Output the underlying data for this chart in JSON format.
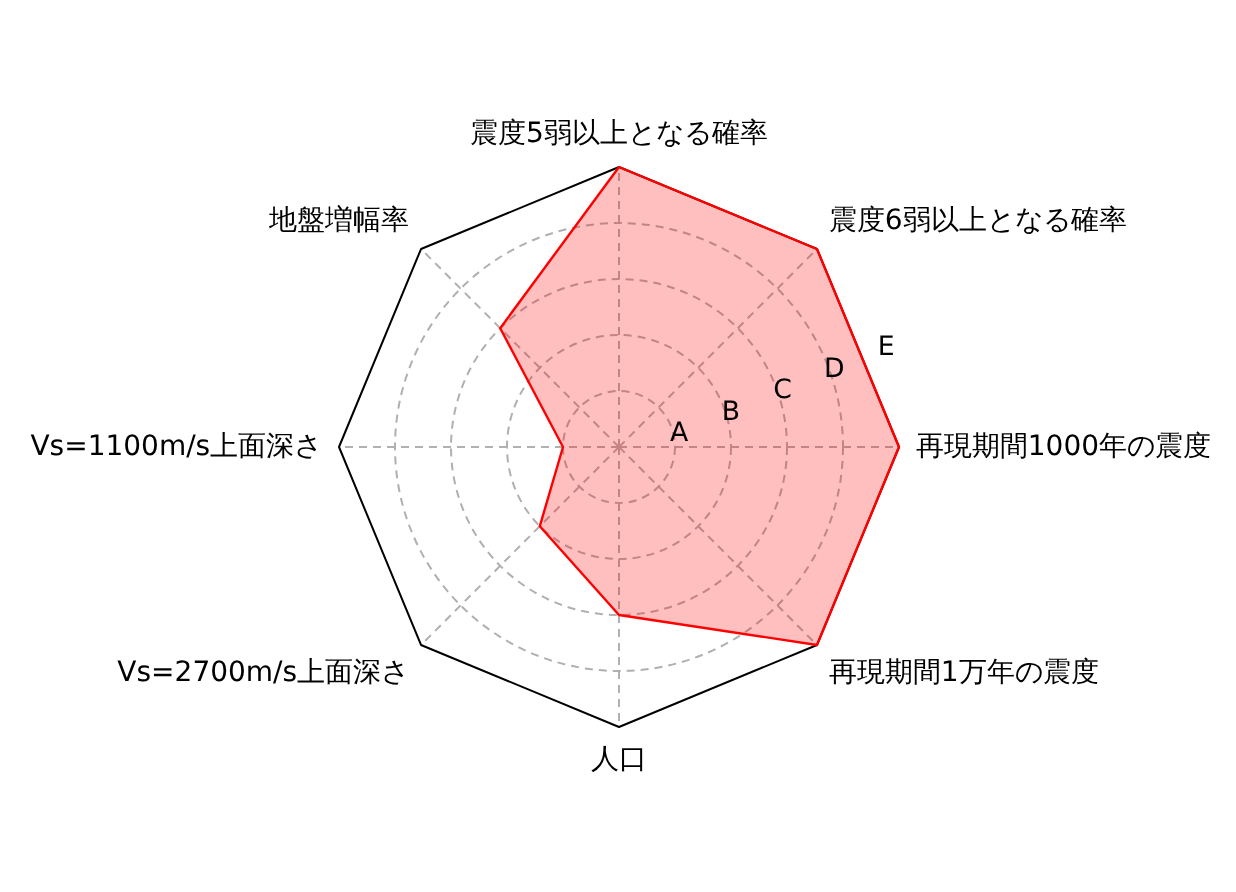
{
  "chart_data": {
    "type": "radar",
    "categories": [
      "震度5弱以上となる確率",
      "震度6弱以上となる確率",
      "再現期間1000年の震度",
      "再現期間1万年の震度",
      "人口",
      "Vs=2700m/s上面深さ",
      "Vs=1100m/s上面深さ",
      "地盤増幅率"
    ],
    "series": [
      {
        "color": "#ff0000",
        "values": [
          5,
          5,
          5,
          5,
          3,
          2,
          1,
          3
        ]
      }
    ],
    "ylim": [
      0,
      5
    ],
    "yticks": [
      {
        "value": 1,
        "label": "A"
      },
      {
        "value": 2,
        "label": "B"
      },
      {
        "value": 3,
        "label": "C"
      },
      {
        "value": 4,
        "label": "D"
      },
      {
        "value": 5,
        "label": "E"
      }
    ],
    "grid": true
  }
}
